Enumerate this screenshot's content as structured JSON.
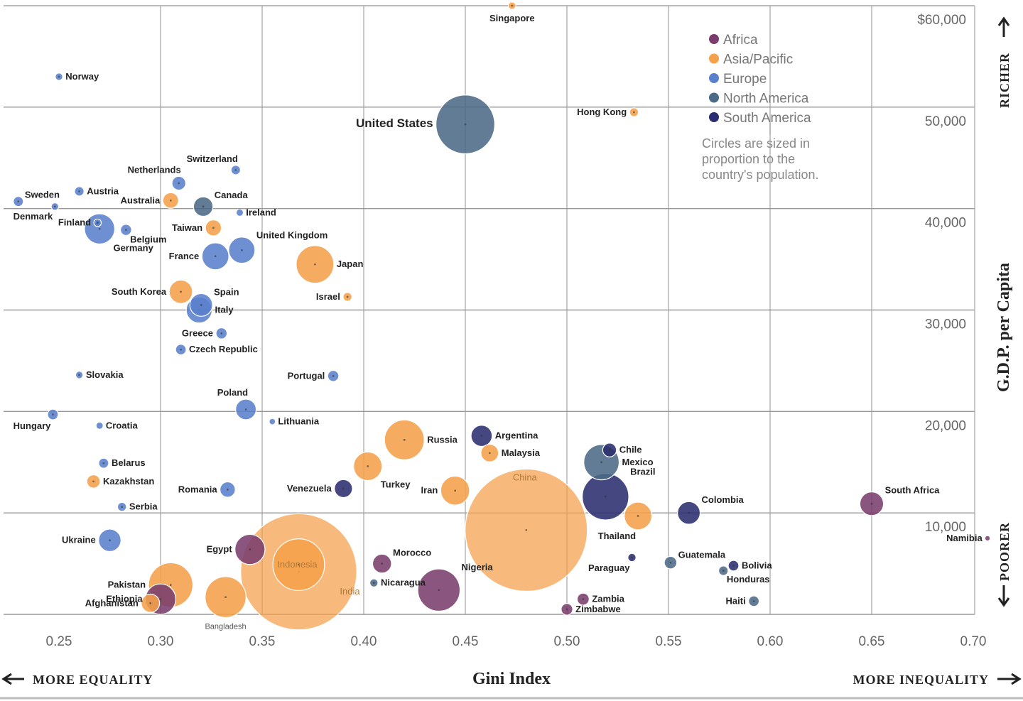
{
  "chart_data": {
    "type": "scatter",
    "title": "",
    "xlabel": "Gini Index",
    "ylabel": "G.D.P. per Capita",
    "xlim": [
      0.23,
      0.72
    ],
    "ylim": [
      0,
      60000
    ],
    "x_ticks": [
      "0.25",
      "0.30",
      "0.35",
      "0.40",
      "0.45",
      "0.50",
      "0.55",
      "0.60",
      "0.65",
      "0.70"
    ],
    "y_ticks": [
      {
        "value": 10000,
        "label": "10,000"
      },
      {
        "value": 20000,
        "label": "20,000"
      },
      {
        "value": 30000,
        "label": "30,000"
      },
      {
        "value": 40000,
        "label": "40,000"
      },
      {
        "value": 50000,
        "label": "50,000"
      },
      {
        "value": 60000,
        "label": "$60,000"
      }
    ],
    "x_left_label": "MORE EQUALITY",
    "x_right_label": "MORE INEQUALITY",
    "y_top_label": "RICHER",
    "y_bottom_label": "POORER",
    "legend": [
      {
        "name": "Africa",
        "color": "#7a3d6d"
      },
      {
        "name": "Asia/Pacific",
        "color": "#f5a04a"
      },
      {
        "name": "Europe",
        "color": "#5a7fcc"
      },
      {
        "name": "North America",
        "color": "#4b6a85"
      },
      {
        "name": "South America",
        "color": "#2a2e6e"
      }
    ],
    "size_note": "Circles are sized in proportion to the country's population.",
    "points": [
      {
        "country": "Singapore",
        "region": "Asia/Pacific",
        "x": 0.473,
        "y": 60000,
        "pop": 5,
        "label": "Singapore",
        "lpos": "below"
      },
      {
        "country": "Norway",
        "region": "Europe",
        "x": 0.25,
        "y": 53000,
        "pop": 5,
        "label": "Norway",
        "lpos": "right"
      },
      {
        "country": "United States",
        "region": "North America",
        "x": 0.45,
        "y": 48300,
        "pop": 310,
        "label": "United States",
        "lpos": "left",
        "big": true
      },
      {
        "country": "Hong Kong",
        "region": "Asia/Pacific",
        "x": 0.533,
        "y": 49500,
        "pop": 7,
        "label": "Hong Kong",
        "lpos": "left"
      },
      {
        "country": "Switzerland",
        "region": "Europe",
        "x": 0.337,
        "y": 43800,
        "pop": 8,
        "label": "Switzerland",
        "lpos": "above-left"
      },
      {
        "country": "Netherlands",
        "region": "Europe",
        "x": 0.309,
        "y": 42500,
        "pop": 17,
        "label": "Netherlands",
        "lpos": "above-left"
      },
      {
        "country": "Sweden",
        "region": "Europe",
        "x": 0.23,
        "y": 40700,
        "pop": 9,
        "label": "Sweden",
        "lpos": "above-right"
      },
      {
        "country": "Austria",
        "region": "Europe",
        "x": 0.26,
        "y": 41700,
        "pop": 8,
        "label": "Austria",
        "lpos": "right"
      },
      {
        "country": "Australia",
        "region": "Asia/Pacific",
        "x": 0.305,
        "y": 40800,
        "pop": 22,
        "label": "Australia",
        "lpos": "left"
      },
      {
        "country": "Canada",
        "region": "North America",
        "x": 0.321,
        "y": 40200,
        "pop": 34,
        "label": "Canada",
        "lpos": "above-right"
      },
      {
        "country": "Denmark",
        "region": "Europe",
        "x": 0.248,
        "y": 40200,
        "pop": 5,
        "label": "Denmark",
        "lpos": "below-left"
      },
      {
        "country": "Ireland",
        "region": "Europe",
        "x": 0.339,
        "y": 39600,
        "pop": 4,
        "label": "Ireland",
        "lpos": "right"
      },
      {
        "country": "Finland",
        "region": "Europe",
        "x": 0.269,
        "y": 38600,
        "pop": 5,
        "label": "Finland",
        "lpos": "left"
      },
      {
        "country": "Germany",
        "region": "Europe",
        "x": 0.27,
        "y": 38000,
        "pop": 82,
        "label": "Germany",
        "lpos": "below-right"
      },
      {
        "country": "Belgium",
        "region": "Europe",
        "x": 0.283,
        "y": 37900,
        "pop": 11,
        "label": "Belgium",
        "lpos": "below-right"
      },
      {
        "country": "Taiwan",
        "region": "Asia/Pacific",
        "x": 0.326,
        "y": 38100,
        "pop": 23,
        "label": "Taiwan",
        "lpos": "left"
      },
      {
        "country": "United Kingdom",
        "region": "Europe",
        "x": 0.34,
        "y": 35900,
        "pop": 62,
        "label": "United Kingdom",
        "lpos": "above-right"
      },
      {
        "country": "France",
        "region": "Europe",
        "x": 0.327,
        "y": 35300,
        "pop": 65,
        "label": "France",
        "lpos": "left"
      },
      {
        "country": "Japan",
        "region": "Asia/Pacific",
        "x": 0.376,
        "y": 34500,
        "pop": 127,
        "label": "Japan",
        "lpos": "right"
      },
      {
        "country": "South Korea",
        "region": "Asia/Pacific",
        "x": 0.31,
        "y": 31800,
        "pop": 49,
        "label": "South Korea",
        "lpos": "left"
      },
      {
        "country": "Spain",
        "region": "Europe",
        "x": 0.32,
        "y": 30500,
        "pop": 46,
        "label": "Spain",
        "lpos": "above-right"
      },
      {
        "country": "Italy",
        "region": "Europe",
        "x": 0.319,
        "y": 30000,
        "pop": 60,
        "label": "Italy",
        "lpos": "right"
      },
      {
        "country": "Israel",
        "region": "Asia/Pacific",
        "x": 0.392,
        "y": 31300,
        "pop": 7,
        "label": "Israel",
        "lpos": "left"
      },
      {
        "country": "Greece",
        "region": "Europe",
        "x": 0.33,
        "y": 27700,
        "pop": 11,
        "label": "Greece",
        "lpos": "left"
      },
      {
        "country": "Czech Republic",
        "region": "Europe",
        "x": 0.31,
        "y": 26100,
        "pop": 10,
        "label": "Czech Republic",
        "lpos": "right"
      },
      {
        "country": "Slovakia",
        "region": "Europe",
        "x": 0.26,
        "y": 23600,
        "pop": 5,
        "label": "Slovakia",
        "lpos": "right"
      },
      {
        "country": "Portugal",
        "region": "Europe",
        "x": 0.385,
        "y": 23500,
        "pop": 11,
        "label": "Portugal",
        "lpos": "left"
      },
      {
        "country": "Poland",
        "region": "Europe",
        "x": 0.342,
        "y": 20200,
        "pop": 38,
        "label": "Poland",
        "lpos": "above-left"
      },
      {
        "country": "Hungary",
        "region": "Europe",
        "x": 0.247,
        "y": 19700,
        "pop": 10,
        "label": "Hungary",
        "lpos": "below-left"
      },
      {
        "country": "Lithuania",
        "region": "Europe",
        "x": 0.355,
        "y": 19000,
        "pop": 3,
        "label": "Lithuania",
        "lpos": "right"
      },
      {
        "country": "Croatia",
        "region": "Europe",
        "x": 0.27,
        "y": 18600,
        "pop": 4,
        "label": "Croatia",
        "lpos": "right"
      },
      {
        "country": "Russia",
        "region": "Asia/Pacific",
        "x": 0.42,
        "y": 17200,
        "pop": 142,
        "label": "Russia",
        "lpos": "right"
      },
      {
        "country": "Argentina",
        "region": "South America",
        "x": 0.458,
        "y": 17600,
        "pop": 40,
        "label": "Argentina",
        "lpos": "right"
      },
      {
        "country": "Malaysia",
        "region": "Asia/Pacific",
        "x": 0.462,
        "y": 15900,
        "pop": 28,
        "label": "Malaysia",
        "lpos": "right"
      },
      {
        "country": "Chile",
        "region": "South America",
        "x": 0.521,
        "y": 16200,
        "pop": 17,
        "label": "Chile",
        "lpos": "right"
      },
      {
        "country": "Mexico",
        "region": "North America",
        "x": 0.517,
        "y": 15000,
        "pop": 112,
        "label": "Mexico",
        "lpos": "right"
      },
      {
        "country": "Belarus",
        "region": "Europe",
        "x": 0.272,
        "y": 14900,
        "pop": 9,
        "label": "Belarus",
        "lpos": "right"
      },
      {
        "country": "Turkey",
        "region": "Asia/Pacific",
        "x": 0.402,
        "y": 14600,
        "pop": 73,
        "label": "Turkey",
        "lpos": "below-right"
      },
      {
        "country": "Kazakhstan",
        "region": "Asia/Pacific",
        "x": 0.267,
        "y": 13100,
        "pop": 16,
        "label": "Kazakhstan",
        "lpos": "right"
      },
      {
        "country": "Brazil",
        "region": "South America",
        "x": 0.519,
        "y": 11600,
        "pop": 194,
        "label": "Brazil",
        "lpos": "above-right"
      },
      {
        "country": "Romania",
        "region": "Europe",
        "x": 0.333,
        "y": 12300,
        "pop": 21,
        "label": "Romania",
        "lpos": "left"
      },
      {
        "country": "Venezuela",
        "region": "South America",
        "x": 0.39,
        "y": 12400,
        "pop": 29,
        "label": "Venezuela",
        "lpos": "left"
      },
      {
        "country": "Iran",
        "region": "Asia/Pacific",
        "x": 0.445,
        "y": 12200,
        "pop": 75,
        "label": "Iran",
        "lpos": "left"
      },
      {
        "country": "South Africa",
        "region": "Africa",
        "x": 0.65,
        "y": 10900,
        "pop": 50,
        "label": "South Africa",
        "lpos": "above-right"
      },
      {
        "country": "Serbia",
        "region": "Europe",
        "x": 0.281,
        "y": 10600,
        "pop": 7,
        "label": "Serbia",
        "lpos": "right"
      },
      {
        "country": "China",
        "region": "Asia/Pacific",
        "x": 0.48,
        "y": 8300,
        "pop": 1340,
        "label": "China",
        "lpos": "inner-top"
      },
      {
        "country": "Colombia",
        "region": "South America",
        "x": 0.56,
        "y": 10000,
        "pop": 46,
        "label": "Colombia",
        "lpos": "above-right"
      },
      {
        "country": "Thailand",
        "region": "Asia/Pacific",
        "x": 0.535,
        "y": 9700,
        "pop": 68,
        "label": "Thailand",
        "lpos": "below-left"
      },
      {
        "country": "Ukraine",
        "region": "Europe",
        "x": 0.275,
        "y": 7300,
        "pop": 45,
        "label": "Ukraine",
        "lpos": "left"
      },
      {
        "country": "India",
        "region": "Asia/Pacific",
        "x": 0.368,
        "y": 4200,
        "pop": 1210,
        "label": "India",
        "lpos": "inner-top"
      },
      {
        "country": "Egypt",
        "region": "Africa",
        "x": 0.344,
        "y": 6400,
        "pop": 81,
        "label": "Egypt",
        "lpos": "left"
      },
      {
        "country": "Indonesia",
        "region": "Asia/Pacific",
        "x": 0.368,
        "y": 4900,
        "pop": 240,
        "label": "Indonesia",
        "lpos": "inner-top"
      },
      {
        "country": "Morocco",
        "region": "Africa",
        "x": 0.409,
        "y": 5000,
        "pop": 32,
        "label": "Morocco",
        "lpos": "above-right"
      },
      {
        "country": "Nigeria",
        "region": "Africa",
        "x": 0.437,
        "y": 2400,
        "pop": 160,
        "label": "Nigeria",
        "lpos": "above-right"
      },
      {
        "country": "Guatemala",
        "region": "North America",
        "x": 0.551,
        "y": 5100,
        "pop": 14,
        "label": "Guatemala",
        "lpos": "above-right"
      },
      {
        "country": "Paraguay",
        "region": "South America",
        "x": 0.532,
        "y": 5600,
        "pop": 6,
        "label": "Paraguay",
        "lpos": "below-left"
      },
      {
        "country": "Bolivia",
        "region": "South America",
        "x": 0.582,
        "y": 4800,
        "pop": 10,
        "label": "Bolivia",
        "lpos": "right"
      },
      {
        "country": "Honduras",
        "region": "North America",
        "x": 0.577,
        "y": 4300,
        "pop": 8,
        "label": "Honduras",
        "lpos": "below-right"
      },
      {
        "country": "Namibia",
        "region": "Africa",
        "x": 0.707,
        "y": 7500,
        "pop": 2,
        "label": "Namibia",
        "lpos": "left"
      },
      {
        "country": "Pakistan",
        "region": "Asia/Pacific",
        "x": 0.305,
        "y": 2900,
        "pop": 176,
        "label": "Pakistan",
        "lpos": "left"
      },
      {
        "country": "Nicaragua",
        "region": "North America",
        "x": 0.405,
        "y": 3100,
        "pop": 6,
        "label": "Nicaragua",
        "lpos": "right"
      },
      {
        "country": "Ethiopia",
        "region": "Africa",
        "x": 0.3,
        "y": 1500,
        "pop": 83,
        "label": "Ethiopia",
        "lpos": "left"
      },
      {
        "country": "Afghanistan",
        "region": "Asia/Pacific",
        "x": 0.295,
        "y": 1100,
        "pop": 30,
        "label": "Afghanistan",
        "lpos": "left"
      },
      {
        "country": "Bangladesh",
        "region": "Asia/Pacific",
        "x": 0.332,
        "y": 1700,
        "pop": 150,
        "label": "Bangladesh",
        "lpos": "below-small"
      },
      {
        "country": "Zambia",
        "region": "Africa",
        "x": 0.508,
        "y": 1500,
        "pop": 13,
        "label": "Zambia",
        "lpos": "right"
      },
      {
        "country": "Zimbabwe",
        "region": "Africa",
        "x": 0.5,
        "y": 500,
        "pop": 12,
        "label": "Zimbabwe",
        "lpos": "right"
      },
      {
        "country": "Haiti",
        "region": "North America",
        "x": 0.592,
        "y": 1300,
        "pop": 10,
        "label": "Haiti",
        "lpos": "left"
      }
    ]
  }
}
